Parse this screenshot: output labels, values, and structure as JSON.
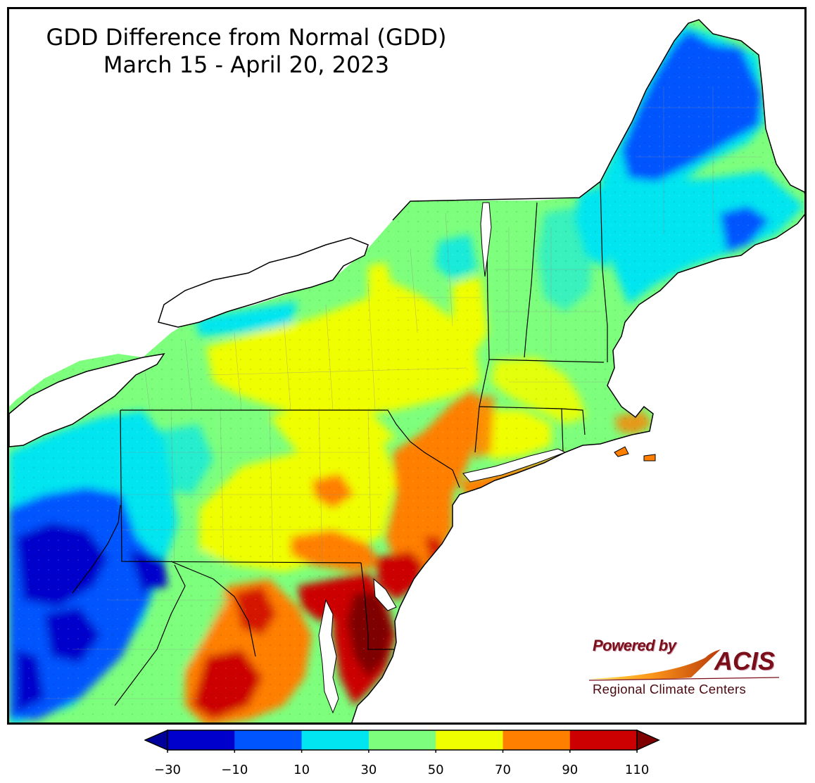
{
  "title": {
    "line1": "GDD Difference from Normal (GDD)",
    "line2": "March 15 - April 20, 2023"
  },
  "logo": {
    "powered_by": "Powered by",
    "brand": "ACIS",
    "subtitle": "Regional Climate Centers"
  },
  "colorbar": {
    "tick_labels": [
      "−30",
      "−10",
      "10",
      "30",
      "50",
      "70",
      "90",
      "110"
    ],
    "bins": [
      {
        "from": -30,
        "to": -10,
        "color": "#0000cc"
      },
      {
        "from": -10,
        "to": 10,
        "color": "#0055ff"
      },
      {
        "from": 10,
        "to": 30,
        "color": "#00e5f0"
      },
      {
        "from": 30,
        "to": 50,
        "color": "#7dff7d"
      },
      {
        "from": 50,
        "to": 70,
        "color": "#f0ff00"
      },
      {
        "from": 70,
        "to": 90,
        "color": "#ff7f00"
      },
      {
        "from": 90,
        "to": 110,
        "color": "#cc0000"
      }
    ],
    "under_color": "#00009a",
    "over_color": "#7f0000"
  },
  "colors": {
    "lake": "#ffffff",
    "ocean": "#ffffff",
    "state_border": "#000000",
    "county_border": "#8a8a8a"
  }
}
